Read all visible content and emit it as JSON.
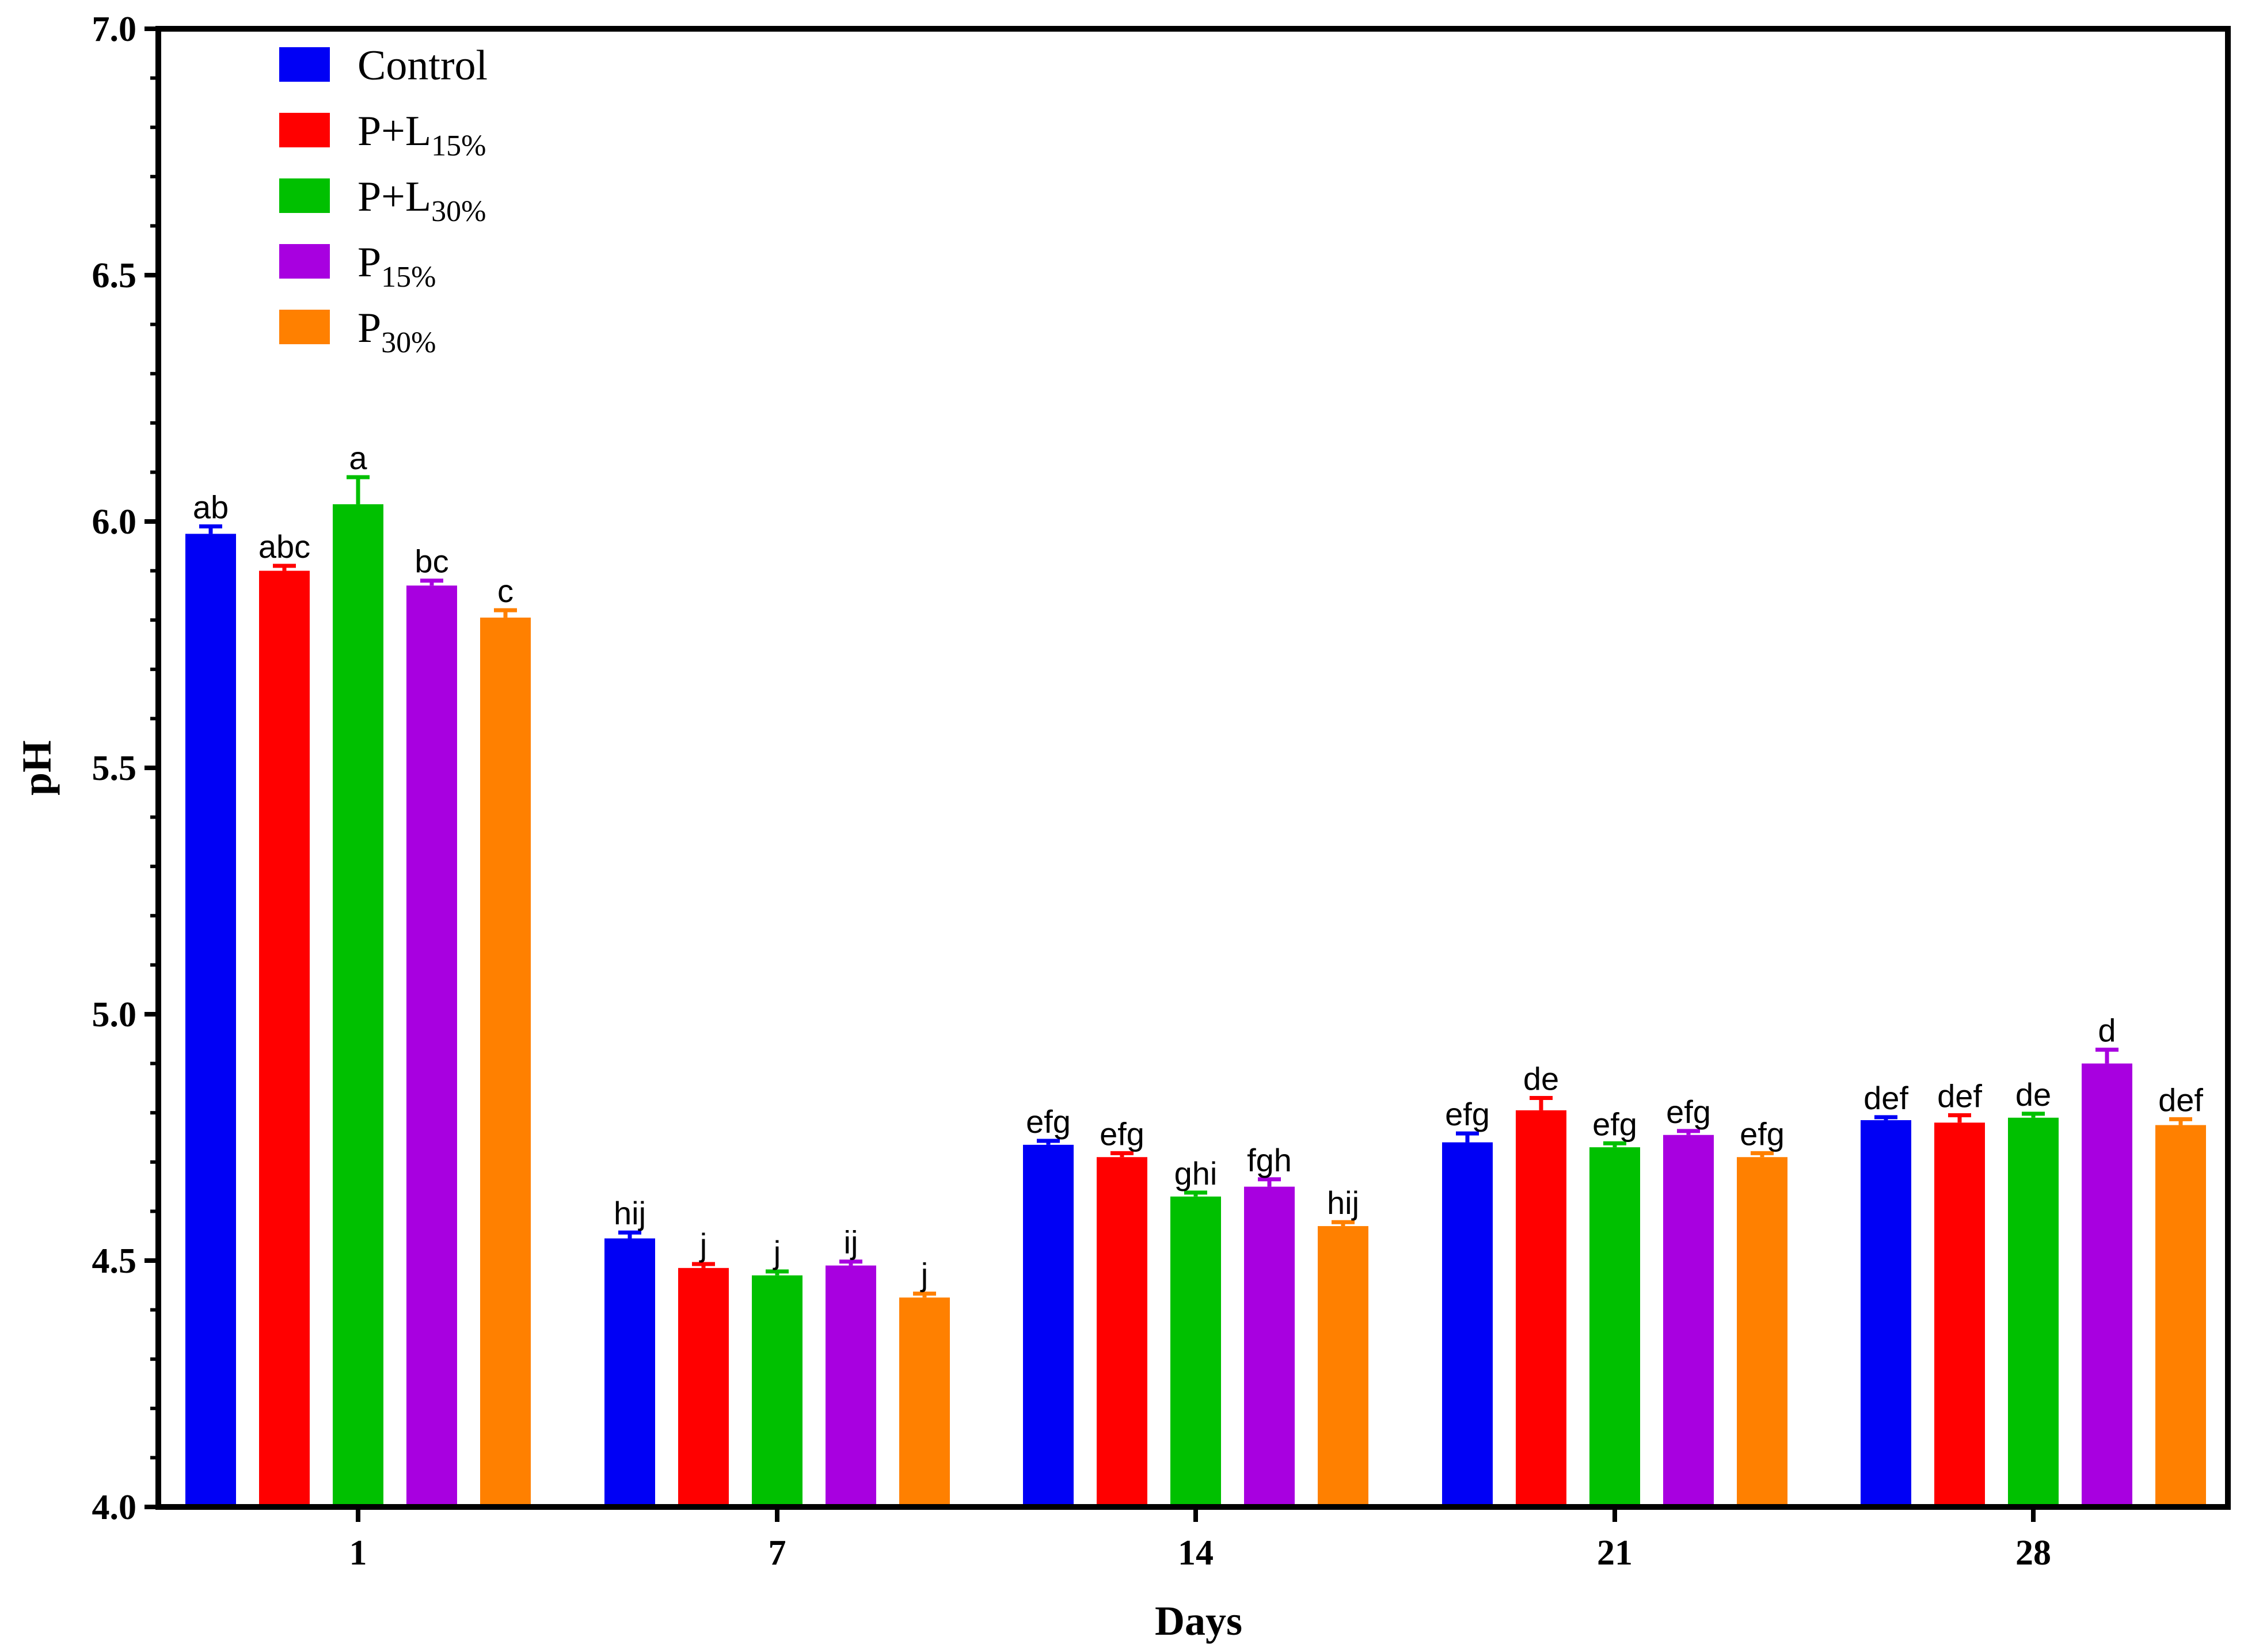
{
  "chart_data": {
    "type": "bar",
    "title": "",
    "xlabel": "Days",
    "ylabel": "pH",
    "ylim": [
      4.0,
      7.0
    ],
    "yticks": [
      "4.0",
      "4.5",
      "5.0",
      "5.5",
      "6.0",
      "6.5",
      "7.0"
    ],
    "categories": [
      "1",
      "7",
      "14",
      "21",
      "28"
    ],
    "grid": false,
    "legend_position": "top-left",
    "series": [
      {
        "name": "Control",
        "legend_main": "Control",
        "legend_sub": "",
        "color": "#0000f5",
        "values": [
          5.975,
          4.545,
          4.735,
          4.74,
          4.785
        ],
        "errors": [
          0.015,
          0.012,
          0.008,
          0.018,
          0.006
        ],
        "labels": [
          "ab",
          "hij",
          "efg",
          "efg",
          "def"
        ]
      },
      {
        "name": "P+L15%",
        "legend_main": "P+L",
        "legend_sub": "15%",
        "color": "#ff0000",
        "values": [
          5.9,
          4.485,
          4.71,
          4.805,
          4.78
        ],
        "errors": [
          0.01,
          0.008,
          0.008,
          0.025,
          0.015
        ],
        "labels": [
          "abc",
          "j",
          "efg",
          "de",
          "def"
        ]
      },
      {
        "name": "P+L30%",
        "legend_main": "P+L",
        "legend_sub": "30%",
        "color": "#00c000",
        "values": [
          6.035,
          4.47,
          4.63,
          4.73,
          4.79
        ],
        "errors": [
          0.055,
          0.008,
          0.008,
          0.008,
          0.008
        ],
        "labels": [
          "a",
          "j",
          "ghi",
          "efg",
          "de"
        ]
      },
      {
        "name": "P15%",
        "legend_main": "P",
        "legend_sub": "15%",
        "color": "#a800e0",
        "values": [
          5.87,
          4.49,
          4.65,
          4.755,
          4.9
        ],
        "errors": [
          0.01,
          0.008,
          0.015,
          0.008,
          0.028
        ],
        "labels": [
          "bc",
          "ij",
          "fgh",
          "efg",
          "d"
        ]
      },
      {
        "name": "P30%",
        "legend_main": "P",
        "legend_sub": "30%",
        "color": "#ff8000",
        "values": [
          5.805,
          4.425,
          4.57,
          4.71,
          4.775
        ],
        "errors": [
          0.015,
          0.008,
          0.008,
          0.008,
          0.012
        ],
        "labels": [
          "c",
          "j",
          "hij",
          "efg",
          "def"
        ]
      }
    ]
  }
}
